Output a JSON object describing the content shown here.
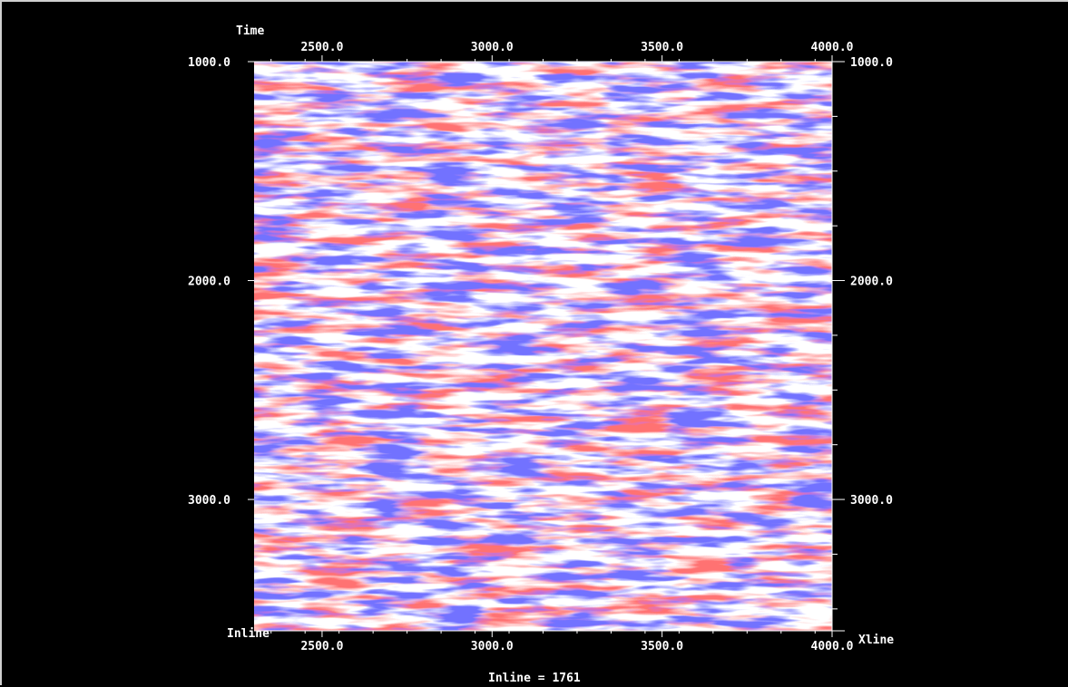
{
  "chart_data": {
    "type": "heatmap",
    "subtype": "seismic-section",
    "title": "",
    "colormap": {
      "negative": "#1a1aff",
      "zero": "#ffffff",
      "positive": "#ff1a1a"
    },
    "top_left_label": "Time",
    "x_axis_label_right": "Xline",
    "bottom_left_label": "Inline",
    "section_label": "Inline = 1761",
    "x_range": [
      2300,
      4000
    ],
    "y_range": [
      1000,
      3600
    ],
    "y_reversed": true,
    "x_ticks": [
      {
        "value": 2500,
        "label": "2500.0"
      },
      {
        "value": 3000,
        "label": "3000.0"
      },
      {
        "value": 3500,
        "label": "3500.0"
      },
      {
        "value": 4000,
        "label": "4000.0"
      }
    ],
    "y_ticks": [
      {
        "value": 1000,
        "label": "1000.0"
      },
      {
        "value": 2000,
        "label": "2000.0"
      },
      {
        "value": 3000,
        "label": "3000.0"
      }
    ]
  }
}
